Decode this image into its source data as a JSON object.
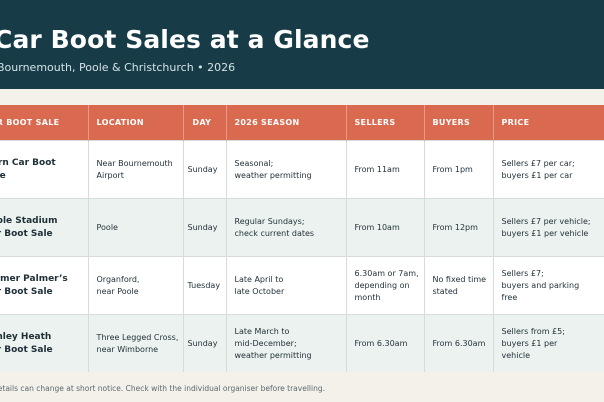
{
  "header": {
    "title": "Car Boot Sales at a Glance",
    "subtitle": "Bournemouth, Poole & Christchurch • 2026"
  },
  "table": {
    "columns": [
      "CAR BOOT SALE",
      "LOCATION",
      "DAY",
      "2026 SEASON",
      "SELLERS",
      "BUYERS",
      "PRICE"
    ],
    "rows": [
      {
        "name": "Hurn Car Boot\nSale",
        "location": "Near Bournemouth\nAirport",
        "day": "Sunday",
        "season": "Seasonal;\nweather permitting",
        "sellers": "From 11am",
        "buyers": "From 1pm",
        "price": "Sellers £7 per car;\nbuyers £1 per car"
      },
      {
        "name": "Poole Stadium\nCar Boot Sale",
        "location": "Poole",
        "day": "Sunday",
        "season": "Regular Sundays;\ncheck current dates",
        "sellers": "From 10am",
        "buyers": "From 12pm",
        "price": "Sellers £7 per vehicle;\nbuyers £1 per vehicle"
      },
      {
        "name": "Farmer Palmer’s\nCar Boot Sale",
        "location": "Organford,\nnear Poole",
        "day": "Tuesday",
        "season": "Late April to\nlate October",
        "sellers": "6.30am or 7am,\ndepending on\nmonth",
        "buyers": "No fixed time\nstated",
        "price": "Sellers £7;\nbuyers and parking\nfree"
      },
      {
        "name": "Ashley Heath\nCar Boot Sale",
        "location": "Three Legged Cross,\nnear Wimborne",
        "day": "Sunday",
        "season": "Late March to\nmid-December;\nweather permitting",
        "sellers": "From 6.30am",
        "buyers": "From 6.30am",
        "price": "Sellers from £5;\nbuyers £1 per\nvehicle"
      }
    ]
  },
  "footer": {
    "note": "Details can change at short notice. Check with the individual organiser before travelling."
  }
}
